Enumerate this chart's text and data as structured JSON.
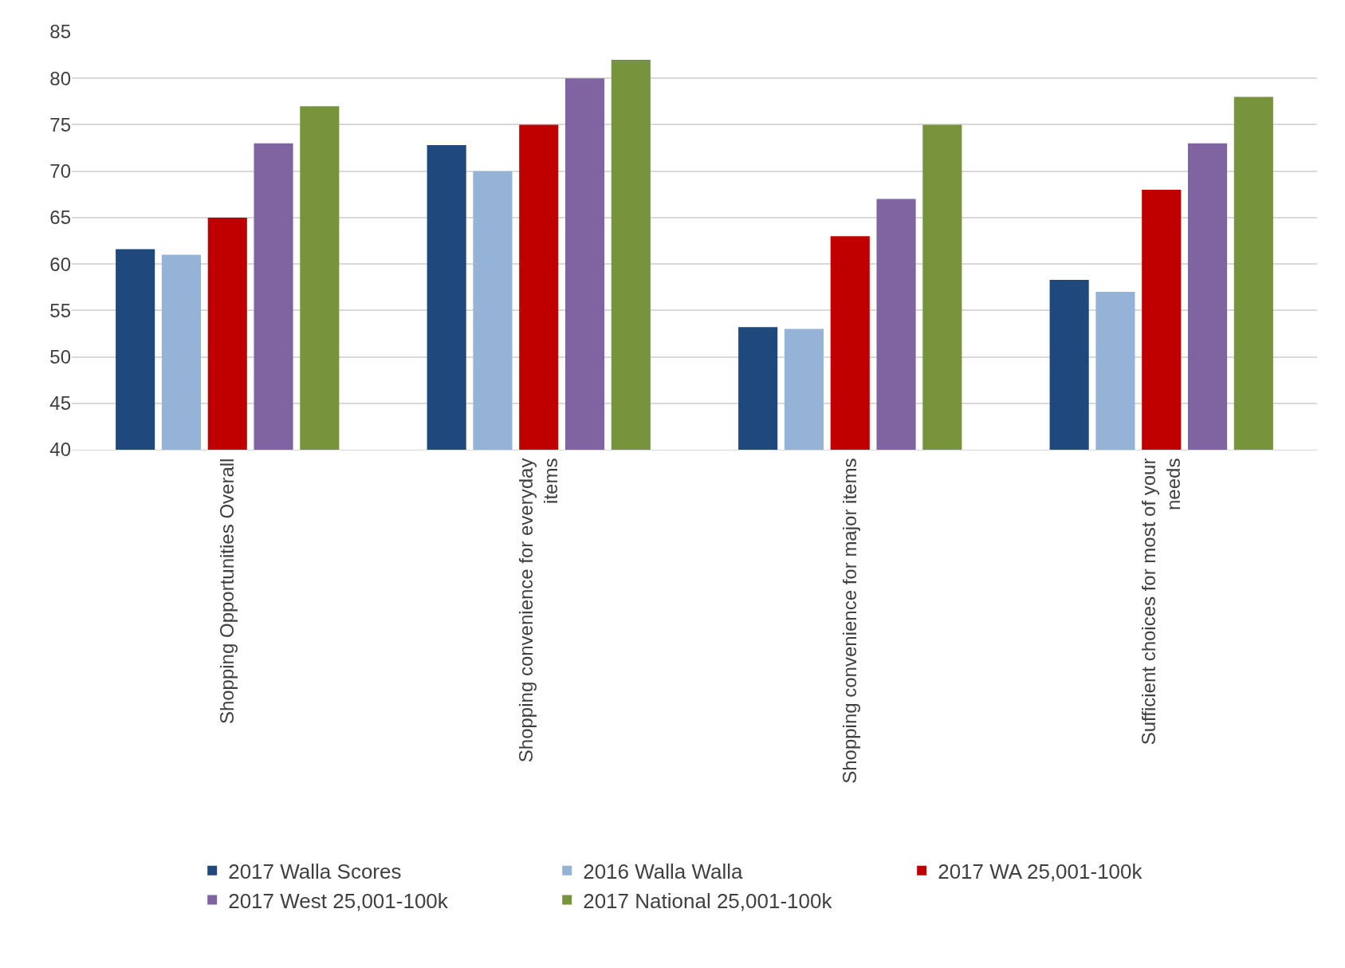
{
  "chart_data": {
    "type": "bar",
    "categories": [
      "Shopping Opportunities Overall",
      "Shopping convenience for everyday items",
      "Shopping convenience for major items",
      "Sufficient choices for most of your needs"
    ],
    "series": [
      {
        "name": "2017 Walla Scores",
        "color": "#1f497d",
        "values": [
          61.6,
          72.8,
          53.2,
          58.3
        ]
      },
      {
        "name": "2016 Walla Walla",
        "color": "#95b3d7",
        "values": [
          61,
          70,
          53,
          57
        ]
      },
      {
        "name": "2017 WA 25,001-100k",
        "color": "#c00000",
        "values": [
          65,
          75,
          63,
          68
        ]
      },
      {
        "name": "2017 West 25,001-100k",
        "color": "#8064a2",
        "values": [
          73,
          80,
          67,
          73
        ]
      },
      {
        "name": "2017 National 25,001-100k",
        "color": "#77933c",
        "values": [
          77,
          82,
          75,
          78
        ]
      }
    ],
    "ylim": [
      40,
      85
    ],
    "yticks": [
      40,
      45,
      50,
      55,
      60,
      65,
      70,
      75,
      80,
      85
    ],
    "grid": "y",
    "legend": "bottom"
  }
}
